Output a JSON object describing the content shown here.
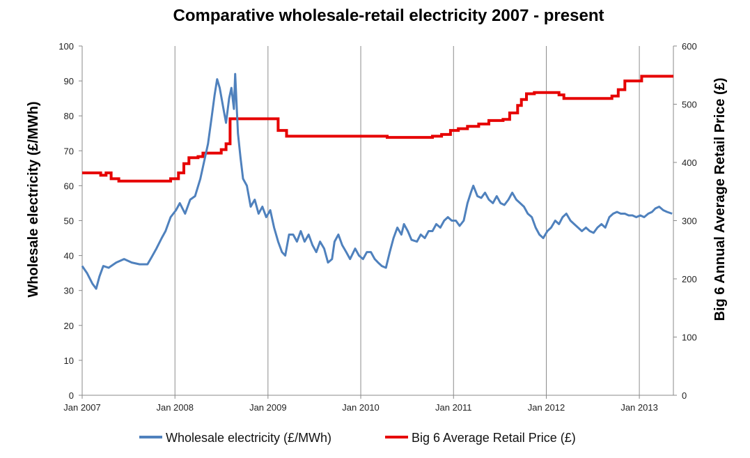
{
  "chart_data": {
    "type": "line",
    "title": "Comparative wholesale-retail electricity 2007 - present",
    "ylabel": "Wholesale electricity (£/MWh)",
    "y2label": "Big 6 Annual Average Retail Price (£)",
    "xlim": [
      "2007-01-01",
      "2013-05-15"
    ],
    "ylim": [
      0,
      100
    ],
    "y2lim": [
      0,
      600
    ],
    "x_ticks": [
      {
        "date": "2007-01-01",
        "label": "Jan 2007"
      },
      {
        "date": "2008-01-01",
        "label": "Jan 2008"
      },
      {
        "date": "2009-01-01",
        "label": "Jan 2009"
      },
      {
        "date": "2010-01-01",
        "label": "Jan 2010"
      },
      {
        "date": "2011-01-01",
        "label": "Jan 2011"
      },
      {
        "date": "2012-01-01",
        "label": "Jan 2012"
      },
      {
        "date": "2013-01-01",
        "label": "Jan 2013"
      }
    ],
    "y_ticks": [
      "0",
      "10",
      "20",
      "30",
      "40",
      "50",
      "60",
      "70",
      "80",
      "90",
      "100"
    ],
    "y2_ticks": [
      "0",
      "100",
      "200",
      "300",
      "400",
      "500",
      "600"
    ],
    "grid": "vertical at year ticks",
    "legend_position": "bottom",
    "series": [
      {
        "name": "Wholesale electricity (£/MWh)",
        "axis": "left",
        "color": "#4f81bd",
        "style": "smooth",
        "points": [
          [
            "2007-01-01",
            37
          ],
          [
            "2007-01-20",
            35
          ],
          [
            "2007-02-10",
            32
          ],
          [
            "2007-02-25",
            30.5
          ],
          [
            "2007-03-10",
            34
          ],
          [
            "2007-03-25",
            37
          ],
          [
            "2007-04-15",
            36.5
          ],
          [
            "2007-05-15",
            38
          ],
          [
            "2007-06-15",
            39
          ],
          [
            "2007-07-15",
            38
          ],
          [
            "2007-08-15",
            37.5
          ],
          [
            "2007-09-15",
            37.5
          ],
          [
            "2007-10-01",
            39.5
          ],
          [
            "2007-10-20",
            42
          ],
          [
            "2007-11-10",
            45
          ],
          [
            "2007-11-25",
            47
          ],
          [
            "2007-12-15",
            51
          ],
          [
            "2008-01-05",
            53
          ],
          [
            "2008-01-20",
            55
          ],
          [
            "2008-02-10",
            52
          ],
          [
            "2008-03-01",
            56
          ],
          [
            "2008-03-20",
            57
          ],
          [
            "2008-04-10",
            62
          ],
          [
            "2008-04-25",
            67
          ],
          [
            "2008-05-10",
            72
          ],
          [
            "2008-05-25",
            80
          ],
          [
            "2008-06-05",
            86
          ],
          [
            "2008-06-15",
            90.5
          ],
          [
            "2008-06-25",
            88
          ],
          [
            "2008-07-10",
            82
          ],
          [
            "2008-07-20",
            78
          ],
          [
            "2008-08-01",
            85
          ],
          [
            "2008-08-10",
            88
          ],
          [
            "2008-08-20",
            82
          ],
          [
            "2008-08-25",
            92
          ],
          [
            "2008-09-05",
            75
          ],
          [
            "2008-09-15",
            68
          ],
          [
            "2008-09-25",
            62
          ],
          [
            "2008-10-10",
            60
          ],
          [
            "2008-10-25",
            54
          ],
          [
            "2008-11-10",
            56
          ],
          [
            "2008-11-25",
            52
          ],
          [
            "2008-12-10",
            54
          ],
          [
            "2008-12-25",
            51
          ],
          [
            "2009-01-10",
            53
          ],
          [
            "2009-01-25",
            48
          ],
          [
            "2009-02-10",
            44
          ],
          [
            "2009-02-25",
            41
          ],
          [
            "2009-03-10",
            40
          ],
          [
            "2009-03-25",
            46
          ],
          [
            "2009-04-10",
            46
          ],
          [
            "2009-04-25",
            44
          ],
          [
            "2009-05-10",
            47
          ],
          [
            "2009-05-25",
            44
          ],
          [
            "2009-06-10",
            46
          ],
          [
            "2009-06-25",
            43
          ],
          [
            "2009-07-10",
            41
          ],
          [
            "2009-07-25",
            44
          ],
          [
            "2009-08-10",
            42
          ],
          [
            "2009-08-25",
            38
          ],
          [
            "2009-09-10",
            39
          ],
          [
            "2009-09-20",
            44
          ],
          [
            "2009-10-05",
            46
          ],
          [
            "2009-10-20",
            43
          ],
          [
            "2009-11-05",
            41
          ],
          [
            "2009-11-20",
            39
          ],
          [
            "2009-12-10",
            42
          ],
          [
            "2009-12-25",
            40
          ],
          [
            "2010-01-10",
            39
          ],
          [
            "2010-01-25",
            41
          ],
          [
            "2010-02-10",
            41
          ],
          [
            "2010-02-25",
            39
          ],
          [
            "2010-03-10",
            38
          ],
          [
            "2010-03-25",
            37
          ],
          [
            "2010-04-10",
            36.5
          ],
          [
            "2010-04-25",
            41
          ],
          [
            "2010-05-10",
            45
          ],
          [
            "2010-05-25",
            48
          ],
          [
            "2010-06-10",
            46
          ],
          [
            "2010-06-20",
            49
          ],
          [
            "2010-07-05",
            47
          ],
          [
            "2010-07-20",
            44.5
          ],
          [
            "2010-08-10",
            44
          ],
          [
            "2010-08-25",
            46
          ],
          [
            "2010-09-10",
            45
          ],
          [
            "2010-09-25",
            47
          ],
          [
            "2010-10-10",
            47
          ],
          [
            "2010-10-25",
            49
          ],
          [
            "2010-11-10",
            48
          ],
          [
            "2010-11-25",
            50
          ],
          [
            "2010-12-10",
            51
          ],
          [
            "2010-12-25",
            50
          ],
          [
            "2011-01-10",
            50
          ],
          [
            "2011-01-25",
            48.5
          ],
          [
            "2011-02-10",
            50
          ],
          [
            "2011-02-25",
            55
          ],
          [
            "2011-03-10",
            58
          ],
          [
            "2011-03-20",
            60
          ],
          [
            "2011-04-05",
            57
          ],
          [
            "2011-04-20",
            56.5
          ],
          [
            "2011-05-05",
            58
          ],
          [
            "2011-05-20",
            56
          ],
          [
            "2011-06-05",
            55
          ],
          [
            "2011-06-20",
            57
          ],
          [
            "2011-07-05",
            55
          ],
          [
            "2011-07-20",
            54.5
          ],
          [
            "2011-08-05",
            56
          ],
          [
            "2011-08-20",
            58
          ],
          [
            "2011-09-05",
            56
          ],
          [
            "2011-09-20",
            55
          ],
          [
            "2011-10-05",
            54
          ],
          [
            "2011-10-20",
            52
          ],
          [
            "2011-11-05",
            51
          ],
          [
            "2011-11-20",
            48
          ],
          [
            "2011-12-05",
            46
          ],
          [
            "2011-12-20",
            45
          ],
          [
            "2012-01-05",
            47
          ],
          [
            "2012-01-20",
            48
          ],
          [
            "2012-02-05",
            50
          ],
          [
            "2012-02-20",
            49
          ],
          [
            "2012-03-05",
            51
          ],
          [
            "2012-03-20",
            52
          ],
          [
            "2012-04-05",
            50
          ],
          [
            "2012-04-20",
            49
          ],
          [
            "2012-05-05",
            48
          ],
          [
            "2012-05-20",
            47
          ],
          [
            "2012-06-05",
            48
          ],
          [
            "2012-06-20",
            47
          ],
          [
            "2012-07-05",
            46.5
          ],
          [
            "2012-07-20",
            48
          ],
          [
            "2012-08-05",
            49
          ],
          [
            "2012-08-20",
            48
          ],
          [
            "2012-09-05",
            51
          ],
          [
            "2012-09-20",
            52
          ],
          [
            "2012-10-05",
            52.5
          ],
          [
            "2012-10-20",
            52
          ],
          [
            "2012-11-05",
            52
          ],
          [
            "2012-11-20",
            51.5
          ],
          [
            "2012-12-05",
            51.5
          ],
          [
            "2012-12-20",
            51
          ],
          [
            "2013-01-05",
            51.5
          ],
          [
            "2013-01-20",
            51
          ],
          [
            "2013-02-05",
            52
          ],
          [
            "2013-02-20",
            52.5
          ],
          [
            "2013-03-05",
            53.5
          ],
          [
            "2013-03-20",
            54
          ],
          [
            "2013-04-05",
            53
          ],
          [
            "2013-04-20",
            52.5
          ],
          [
            "2013-05-10",
            52
          ]
        ]
      },
      {
        "name": "Big 6 Average Retail Price (£)",
        "axis": "right",
        "color": "#e60000",
        "style": "step",
        "points": [
          [
            "2007-01-01",
            382
          ],
          [
            "2007-03-15",
            378
          ],
          [
            "2007-04-05",
            382
          ],
          [
            "2007-04-25",
            372
          ],
          [
            "2007-05-25",
            368
          ],
          [
            "2007-12-15",
            372
          ],
          [
            "2008-01-15",
            382
          ],
          [
            "2008-02-05",
            398
          ],
          [
            "2008-02-25",
            408
          ],
          [
            "2008-04-01",
            410
          ],
          [
            "2008-04-20",
            416
          ],
          [
            "2008-07-01",
            422
          ],
          [
            "2008-07-20",
            432
          ],
          [
            "2008-08-05",
            475
          ],
          [
            "2009-02-10",
            455
          ],
          [
            "2009-03-15",
            445
          ],
          [
            "2010-04-15",
            443
          ],
          [
            "2010-09-01",
            443
          ],
          [
            "2010-10-10",
            445
          ],
          [
            "2010-11-15",
            448
          ],
          [
            "2010-12-20",
            455
          ],
          [
            "2011-01-20",
            458
          ],
          [
            "2011-02-25",
            462
          ],
          [
            "2011-04-10",
            466
          ],
          [
            "2011-05-20",
            472
          ],
          [
            "2011-07-15",
            474
          ],
          [
            "2011-08-10",
            485
          ],
          [
            "2011-09-10",
            498
          ],
          [
            "2011-09-25",
            508
          ],
          [
            "2011-10-15",
            518
          ],
          [
            "2011-11-15",
            520
          ],
          [
            "2012-02-20",
            516
          ],
          [
            "2012-03-10",
            510
          ],
          [
            "2012-09-15",
            514
          ],
          [
            "2012-10-10",
            525
          ],
          [
            "2012-11-05",
            540
          ],
          [
            "2013-01-10",
            548
          ],
          [
            "2013-05-15",
            548
          ]
        ]
      }
    ]
  }
}
